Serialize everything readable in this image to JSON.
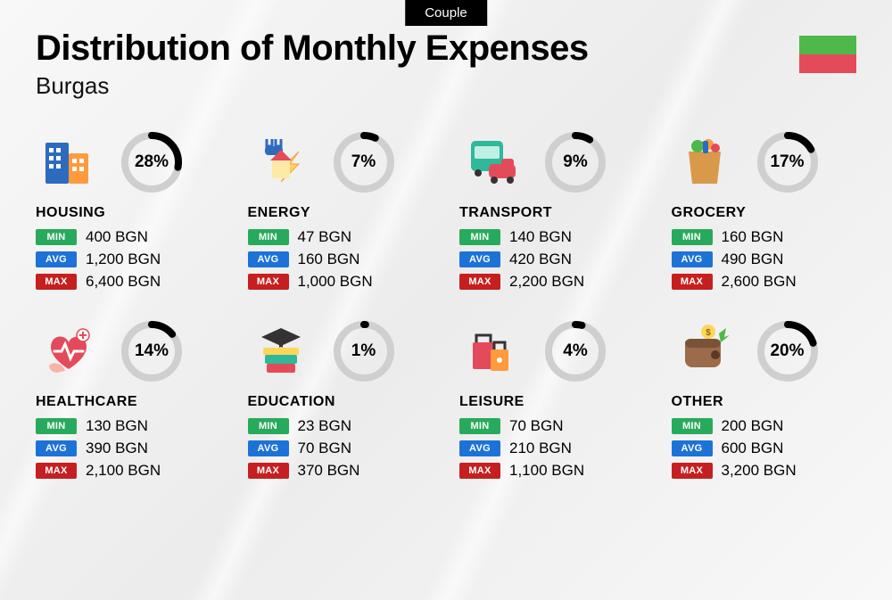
{
  "badge": "Couple",
  "title": "Distribution of Monthly Expenses",
  "subtitle": "Burgas",
  "flag_colors": [
    "#4fb84a",
    "#e44b5a"
  ],
  "currency": "BGN",
  "pill_labels": {
    "min": "MIN",
    "avg": "AVG",
    "max": "MAX"
  },
  "pill_colors": {
    "min": "#28aa5c",
    "avg": "#1d72d8",
    "max": "#c61f1f"
  },
  "donut": {
    "track_color": "#cfcfcf",
    "arc_color": "#000000",
    "stroke_width": 8,
    "radius": 30
  },
  "categories": [
    {
      "key": "housing",
      "label": "HOUSING",
      "percent": 28,
      "min": "400",
      "avg": "1,200",
      "max": "6,400",
      "icon": "housing-icon"
    },
    {
      "key": "energy",
      "label": "ENERGY",
      "percent": 7,
      "min": "47",
      "avg": "160",
      "max": "1,000",
      "icon": "energy-icon"
    },
    {
      "key": "transport",
      "label": "TRANSPORT",
      "percent": 9,
      "min": "140",
      "avg": "420",
      "max": "2,200",
      "icon": "transport-icon"
    },
    {
      "key": "grocery",
      "label": "GROCERY",
      "percent": 17,
      "min": "160",
      "avg": "490",
      "max": "2,600",
      "icon": "grocery-icon"
    },
    {
      "key": "healthcare",
      "label": "HEALTHCARE",
      "percent": 14,
      "min": "130",
      "avg": "390",
      "max": "2,100",
      "icon": "healthcare-icon"
    },
    {
      "key": "education",
      "label": "EDUCATION",
      "percent": 1,
      "min": "23",
      "avg": "70",
      "max": "370",
      "icon": "education-icon"
    },
    {
      "key": "leisure",
      "label": "LEISURE",
      "percent": 4,
      "min": "70",
      "avg": "210",
      "max": "1,100",
      "icon": "leisure-icon"
    },
    {
      "key": "other",
      "label": "OTHER",
      "percent": 20,
      "min": "200",
      "avg": "600",
      "max": "3,200",
      "icon": "other-icon"
    }
  ],
  "icons": {
    "housing-icon": {
      "colors": [
        "#2d6bbf",
        "#ff9b3d",
        "#e44b5a",
        "#5b4a8a"
      ]
    },
    "energy-icon": {
      "colors": [
        "#ffd55a",
        "#ff9b3d",
        "#2d6bbf",
        "#e44b5a"
      ]
    },
    "transport-icon": {
      "colors": [
        "#2fb89a",
        "#e44b5a",
        "#333333"
      ]
    },
    "grocery-icon": {
      "colors": [
        "#d89a4a",
        "#4fb84a",
        "#ff9b3d",
        "#e44b5a",
        "#2d6bbf"
      ]
    },
    "healthcare-icon": {
      "colors": [
        "#e44b5a",
        "#f7b3a8",
        "#ffffff"
      ]
    },
    "education-icon": {
      "colors": [
        "#333333",
        "#2fb89a",
        "#e44b5a",
        "#ffd55a"
      ]
    },
    "leisure-icon": {
      "colors": [
        "#e44b5a",
        "#ff9b3d",
        "#333333"
      ]
    },
    "other-icon": {
      "colors": [
        "#9b6b4a",
        "#4fb84a",
        "#ffd55a"
      ]
    }
  }
}
